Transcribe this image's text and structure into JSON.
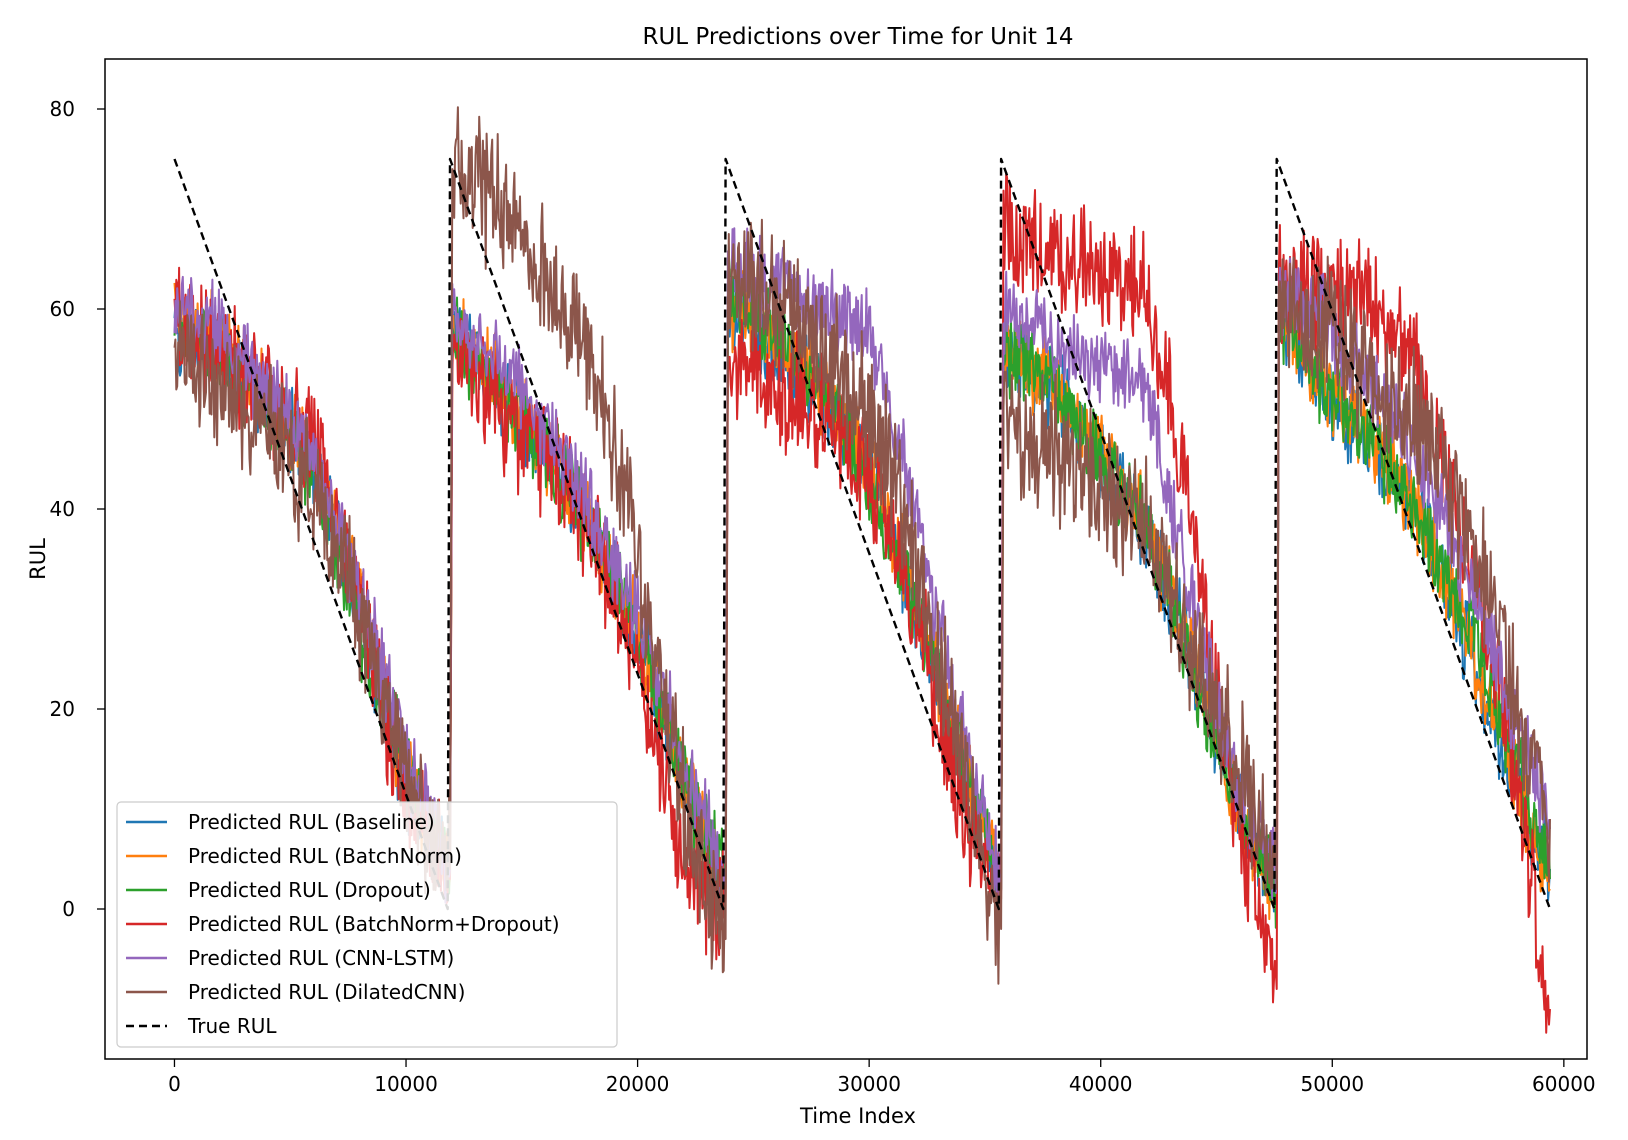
{
  "chart_data": {
    "type": "line",
    "title": "RUL Predictions over Time for Unit 14",
    "xlabel": "Time Index",
    "ylabel": "RUL",
    "xlim": [
      -3000,
      61000
    ],
    "ylim": [
      -15,
      85
    ],
    "xticks": [
      0,
      10000,
      20000,
      30000,
      40000,
      50000,
      60000
    ],
    "xtick_labels": [
      "0",
      "10000",
      "20000",
      "30000",
      "40000",
      "50000",
      "60000"
    ],
    "yticks": [
      0,
      20,
      40,
      60,
      80
    ],
    "ytick_labels": [
      "0",
      "20",
      "40",
      "60",
      "80"
    ],
    "grid": false,
    "legend_position": "lower-left",
    "series": [
      {
        "name": "Predicted RUL (Baseline)",
        "color": "#1f77b4",
        "dash": false,
        "noise": 5,
        "x": [
          0,
          2000,
          4000,
          6000,
          8000,
          10000,
          11900,
          12000,
          14000,
          16000,
          18000,
          20000,
          22000,
          23800,
          23900,
          26000,
          28000,
          30000,
          32000,
          34000,
          35700,
          35800,
          38000,
          40000,
          42000,
          44000,
          46000,
          47600,
          47700,
          50000,
          52000,
          54000,
          56000,
          58000,
          59400
        ],
        "y": [
          58,
          56,
          50,
          45,
          30,
          12,
          3,
          58,
          52,
          45,
          38,
          28,
          12,
          2,
          60,
          56,
          52,
          44,
          30,
          15,
          2,
          56,
          52,
          45,
          38,
          25,
          10,
          2,
          60,
          50,
          45,
          38,
          25,
          12,
          4
        ]
      },
      {
        "name": "Predicted RUL (BatchNorm)",
        "color": "#ff7f0e",
        "dash": false,
        "noise": 5,
        "x": [
          0,
          2000,
          4000,
          6000,
          8000,
          10000,
          11900,
          12000,
          14000,
          16000,
          18000,
          20000,
          22000,
          23800,
          23900,
          26000,
          28000,
          30000,
          32000,
          34000,
          35700,
          35800,
          38000,
          40000,
          42000,
          44000,
          46000,
          47600,
          47700,
          50000,
          52000,
          54000,
          56000,
          58000,
          59400
        ],
        "y": [
          59,
          57,
          51,
          45,
          31,
          13,
          3,
          58,
          53,
          46,
          38,
          28,
          13,
          2,
          60,
          57,
          52,
          45,
          31,
          16,
          2,
          56,
          52,
          46,
          38,
          25,
          10,
          1,
          60,
          51,
          46,
          38,
          26,
          12,
          2
        ]
      },
      {
        "name": "Predicted RUL (Dropout)",
        "color": "#2ca02c",
        "dash": false,
        "noise": 5,
        "x": [
          0,
          2000,
          4000,
          6000,
          8000,
          10000,
          11900,
          12000,
          14000,
          16000,
          18000,
          20000,
          22000,
          23800,
          23900,
          26000,
          28000,
          30000,
          32000,
          34000,
          35700,
          35800,
          38000,
          40000,
          42000,
          44000,
          46000,
          47600,
          47700,
          50000,
          52000,
          54000,
          56000,
          58000,
          59400
        ],
        "y": [
          58,
          56,
          50,
          44,
          28,
          14,
          5,
          57,
          52,
          46,
          38,
          28,
          13,
          3,
          62,
          58,
          52,
          42,
          30,
          15,
          2,
          56,
          52,
          45,
          38,
          24,
          10,
          2,
          60,
          51,
          46,
          38,
          28,
          14,
          3
        ]
      },
      {
        "name": "Predicted RUL (BatchNorm+Dropout)",
        "color": "#d62728",
        "dash": false,
        "noise": 7,
        "x": [
          0,
          2000,
          4000,
          6000,
          8000,
          10000,
          11900,
          12000,
          14000,
          16000,
          18000,
          20000,
          22000,
          23800,
          23900,
          26000,
          28000,
          30000,
          32000,
          34000,
          35700,
          35800,
          38000,
          40000,
          42000,
          44000,
          46000,
          47600,
          47700,
          50000,
          52000,
          54000,
          56000,
          58000,
          59400
        ],
        "y": [
          58,
          56,
          52,
          47,
          32,
          10,
          3,
          57,
          50,
          45,
          38,
          25,
          3,
          1,
          55,
          52,
          50,
          44,
          30,
          10,
          1,
          68,
          66,
          64,
          62,
          38,
          8,
          -8,
          62,
          62,
          60,
          52,
          35,
          12,
          -10
        ]
      },
      {
        "name": "Predicted RUL (CNN-LSTM)",
        "color": "#9467bd",
        "dash": false,
        "noise": 5,
        "x": [
          0,
          2000,
          4000,
          6000,
          8000,
          10000,
          11900,
          12000,
          14000,
          16000,
          18000,
          20000,
          22000,
          23800,
          23900,
          26000,
          28000,
          30000,
          32000,
          34000,
          35700,
          35800,
          38000,
          40000,
          42000,
          44000,
          46000,
          47600,
          47700,
          50000,
          52000,
          54000,
          56000,
          58000,
          59400
        ],
        "y": [
          60,
          58,
          52,
          46,
          32,
          15,
          4,
          60,
          55,
          48,
          40,
          30,
          15,
          3,
          64,
          62,
          60,
          58,
          40,
          18,
          2,
          60,
          57,
          54,
          52,
          30,
          12,
          3,
          62,
          58,
          52,
          44,
          32,
          18,
          8
        ]
      },
      {
        "name": "Predicted RUL (DilatedCNN)",
        "color": "#8c564b",
        "dash": false,
        "noise": 8,
        "x": [
          0,
          2000,
          4000,
          6000,
          8000,
          10000,
          11900,
          12000,
          14000,
          16000,
          18000,
          20000,
          22000,
          23800,
          23900,
          26000,
          28000,
          30000,
          32000,
          34000,
          35700,
          35800,
          38000,
          40000,
          42000,
          44000,
          46000,
          47600,
          47700,
          50000,
          52000,
          54000,
          56000,
          58000,
          59400
        ],
        "y": [
          56,
          52,
          48,
          42,
          30,
          12,
          4,
          75,
          70,
          64,
          55,
          35,
          10,
          -3,
          64,
          60,
          56,
          50,
          35,
          15,
          -2,
          48,
          46,
          42,
          38,
          25,
          15,
          2,
          60,
          58,
          52,
          48,
          38,
          20,
          9
        ]
      },
      {
        "name": "True RUL",
        "color": "#000000",
        "dash": true,
        "noise": 0,
        "x": [
          0,
          11800,
          11900,
          23700,
          23800,
          35600,
          35700,
          47500,
          47600,
          59400
        ],
        "y": [
          75,
          0,
          75,
          0,
          75,
          0,
          75,
          0,
          75,
          0
        ]
      }
    ]
  }
}
